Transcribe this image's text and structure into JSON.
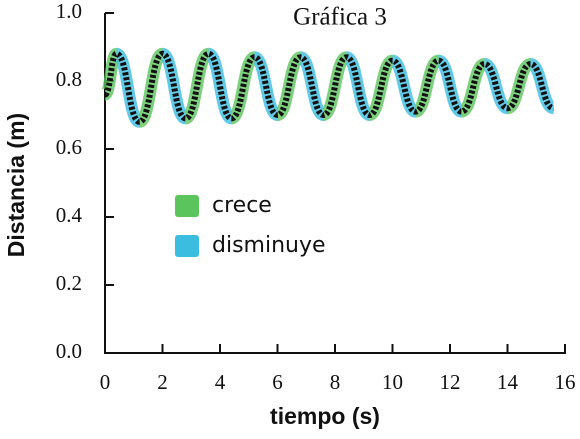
{
  "chart_data": {
    "type": "line",
    "title": "Gráfica 3",
    "x_label": "tiempo (s)",
    "y_label": "Distancia (m)",
    "x": [
      0,
      0.4,
      1.2,
      2.0,
      2.8,
      3.6,
      4.4,
      5.2,
      6.0,
      6.8,
      7.6,
      8.4,
      9.2,
      10.0,
      10.8,
      11.6,
      12.4,
      13.2,
      14.0,
      14.8,
      15.6
    ],
    "series": [
      {
        "color": "#111111",
        "values": [
          0.76,
          0.88,
          0.68,
          0.88,
          0.69,
          0.88,
          0.69,
          0.87,
          0.7,
          0.87,
          0.7,
          0.87,
          0.7,
          0.86,
          0.71,
          0.86,
          0.71,
          0.85,
          0.72,
          0.85,
          0.72
        ]
      }
    ],
    "legend": [
      {
        "label": "crece",
        "color": "#5cc45c"
      },
      {
        "label": "disminuye",
        "color": "#3bbde0"
      }
    ],
    "xlim": [
      0,
      16
    ],
    "xticks": [
      0,
      2,
      4,
      6,
      8,
      10,
      12,
      14,
      16
    ],
    "ylim": [
      0,
      1.0
    ],
    "yticks": [
      {
        "value": 0,
        "label": "0.0"
      },
      {
        "value": 0.2,
        "label": "0.2"
      },
      {
        "value": 0.4,
        "label": "0.4"
      },
      {
        "value": 0.6,
        "label": "0.6"
      },
      {
        "value": 0.8,
        "label": "0.8"
      },
      {
        "value": 1.0,
        "label": "1.0"
      }
    ]
  }
}
